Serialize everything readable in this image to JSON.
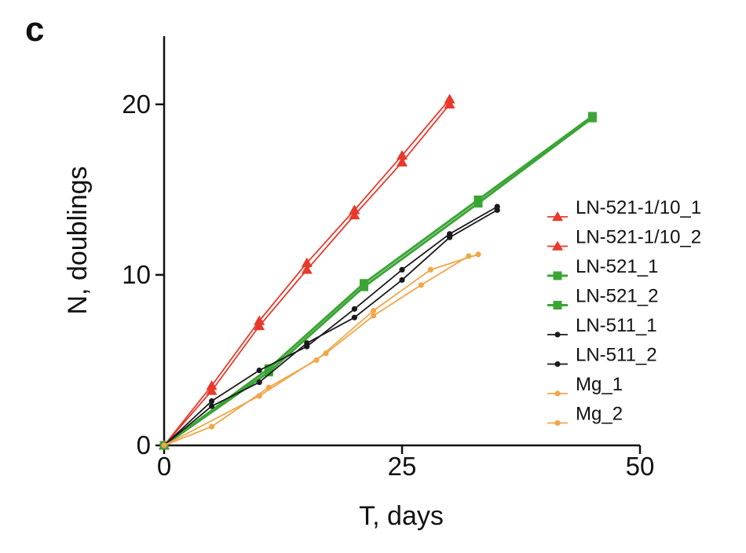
{
  "panel_label": "c",
  "chart_data": {
    "type": "line",
    "title": "",
    "xlabel": "T, days",
    "ylabel": "N, doublings",
    "xlim": [
      0,
      50
    ],
    "ylim": [
      0,
      24
    ],
    "xticks": [
      0,
      25,
      50
    ],
    "yticks": [
      0,
      10,
      20
    ],
    "xtick_labels": [
      "0",
      "25",
      "50"
    ],
    "ytick_labels": [
      "0",
      "10",
      "20"
    ],
    "grid": false,
    "legend_position": "right",
    "series": [
      {
        "name": "LN-521-1/10_1",
        "color": "#e8392b",
        "marker": "triangle",
        "x": [
          0,
          5,
          10,
          15,
          20,
          25,
          30
        ],
        "y": [
          0,
          3.5,
          7.3,
          10.7,
          13.8,
          17.0,
          20.3
        ]
      },
      {
        "name": "LN-521-1/10_2",
        "color": "#e8392b",
        "marker": "triangle",
        "x": [
          0,
          5,
          10,
          15,
          20,
          25,
          30
        ],
        "y": [
          0,
          3.2,
          7.0,
          10.3,
          13.5,
          16.6,
          20.0
        ]
      },
      {
        "name": "LN-521_1",
        "color": "#3aa535",
        "marker": "square",
        "x": [
          0,
          11,
          21,
          33,
          45
        ],
        "y": [
          0,
          4.5,
          9.5,
          14.4,
          19.3
        ]
      },
      {
        "name": "LN-521_2",
        "color": "#3aa535",
        "marker": "square",
        "x": [
          0,
          11,
          21,
          33,
          45
        ],
        "y": [
          0,
          4.3,
          9.3,
          14.2,
          19.2
        ]
      },
      {
        "name": "LN-511_1",
        "color": "#1a1a1a",
        "marker": "circle",
        "x": [
          0,
          5,
          10,
          15,
          20,
          25,
          30,
          35
        ],
        "y": [
          0,
          2.6,
          4.4,
          5.8,
          8.0,
          10.3,
          12.4,
          14.0
        ]
      },
      {
        "name": "LN-511_2",
        "color": "#1a1a1a",
        "marker": "circle",
        "x": [
          0,
          5,
          10,
          15,
          20,
          25,
          30,
          35
        ],
        "y": [
          0,
          2.3,
          3.7,
          6.0,
          7.5,
          9.7,
          12.2,
          13.8
        ]
      },
      {
        "name": "Mg_1",
        "color": "#f0a64a",
        "marker": "circle",
        "x": [
          0,
          5,
          11,
          16,
          22,
          28,
          33
        ],
        "y": [
          0,
          1.1,
          3.4,
          5.0,
          7.9,
          10.3,
          11.2
        ]
      },
      {
        "name": "Mg_2",
        "color": "#f0a64a",
        "marker": "circle",
        "x": [
          0,
          10,
          17,
          22,
          27,
          32
        ],
        "y": [
          0,
          2.9,
          5.4,
          7.6,
          9.4,
          11.1
        ]
      }
    ]
  }
}
